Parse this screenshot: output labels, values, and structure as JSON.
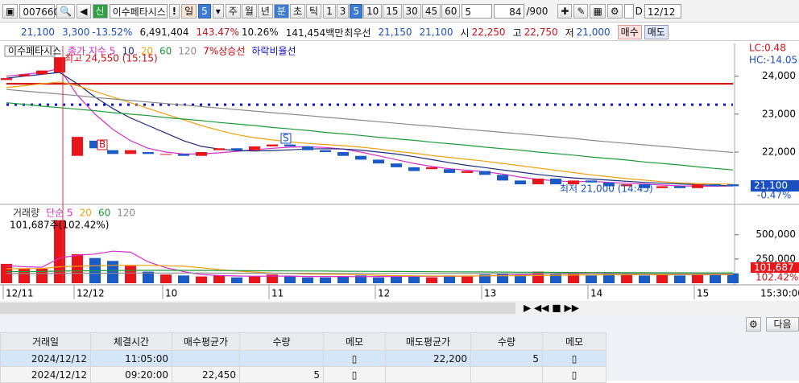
{
  "toolbar": {
    "code": "007660",
    "badge": "신",
    "name": "이수페타시스",
    "alert": "!",
    "period_label": "일",
    "period_value": "5",
    "periods": [
      "주",
      "월",
      "년",
      "분",
      "초",
      "틱"
    ],
    "intervals": [
      "1",
      "3",
      "5",
      "10",
      "15",
      "30",
      "45",
      "60"
    ],
    "count": "5",
    "shown": "84",
    "total": "/900",
    "d_label": "D",
    "date": "12/12"
  },
  "quote": {
    "price": "21,100",
    "change": "3,300",
    "rate": "-13.52%",
    "volume": "6,491,404",
    "volume_rate": "143.47%",
    "turnover": "10.26%",
    "amount": "141,454백만",
    "best_label": "최우선",
    "ask": "21,150",
    "bid": "21,100",
    "open_label": "시",
    "open": "22,250",
    "high_label": "고",
    "high": "22,750",
    "low_label": "저",
    "low": "21,000",
    "buy": "매수",
    "sell": "매도"
  },
  "chart_data": [
    {
      "type": "candlestick",
      "title": "이수페타시스",
      "up_color": "#e8161b",
      "down_color": "#1a5bc8",
      "open": [
        23900,
        24000,
        24050,
        24100,
        21900,
        22300,
        22050,
        21950,
        22000,
        21950,
        21950,
        21900,
        22050,
        22100,
        22050,
        22150,
        22200,
        22150,
        22050,
        22000,
        21900,
        21800,
        21700,
        21600,
        21550,
        21550,
        21450,
        21500,
        21400,
        21250,
        21150,
        21300,
        21150,
        21250,
        21200,
        21100,
        21150,
        21050,
        21100,
        21050,
        21150,
        21150
      ],
      "close": [
        23950,
        24050,
        24150,
        24500,
        22400,
        22100,
        21950,
        22050,
        21950,
        21950,
        21900,
        22000,
        22100,
        22050,
        22150,
        22200,
        22150,
        22050,
        22000,
        21900,
        21800,
        21700,
        21600,
        21500,
        21600,
        21450,
        21500,
        21400,
        21250,
        21150,
        21300,
        21150,
        21250,
        21200,
        21100,
        21150,
        21050,
        21100,
        21050,
        21150,
        21100,
        21100
      ],
      "ylim": [
        20600,
        24800
      ],
      "yticks": [
        {
          "value": 24000,
          "label": "24,000"
        },
        {
          "value": 23000,
          "label": "23,000"
        },
        {
          "value": 22000,
          "label": "22,000"
        }
      ],
      "series": [
        {
          "name": "종가 지수 5",
          "color": "#d62cc8",
          "values": [
            24000,
            24050,
            24100,
            24200,
            23500,
            23000,
            22600,
            22300,
            22100,
            22000,
            21950,
            21950,
            21980,
            22020,
            22060,
            22100,
            22130,
            22140,
            22120,
            22080,
            22000,
            21900,
            21800,
            21700,
            21620,
            21560,
            21520,
            21480,
            21420,
            21340,
            21280,
            21240,
            21220,
            21230,
            21200,
            21180,
            21160,
            21130,
            21110,
            21100,
            21100,
            21110
          ]
        },
        {
          "name": "10",
          "color": "#1c2a7a",
          "values": [
            23950,
            24000,
            24050,
            24100,
            23800,
            23450,
            23150,
            22900,
            22700,
            22500,
            22300,
            22150,
            22080,
            22040,
            22030,
            22040,
            22060,
            22080,
            22090,
            22080,
            22050,
            22000,
            21950,
            21880,
            21800,
            21720,
            21650,
            21590,
            21530,
            21470,
            21410,
            21360,
            21320,
            21290,
            21260,
            21230,
            21200,
            21180,
            21160,
            21140,
            21120,
            21110
          ]
        },
        {
          "name": "20",
          "color": "#f0a010",
          "values": [
            23700,
            23750,
            23800,
            23850,
            23750,
            23600,
            23450,
            23300,
            23150,
            23000,
            22850,
            22700,
            22570,
            22460,
            22380,
            22320,
            22270,
            22230,
            22200,
            22170,
            22130,
            22080,
            22020,
            21970,
            21910,
            21860,
            21810,
            21760,
            21700,
            21640,
            21580,
            21520,
            21460,
            21400,
            21350,
            21300,
            21260,
            21220,
            21190,
            21170,
            21160,
            21150
          ]
        },
        {
          "name": "60",
          "color": "#1f9a3a",
          "values": [
            23300,
            23260,
            23210,
            23170,
            23130,
            23090,
            23040,
            23000,
            22960,
            22910,
            22870,
            22830,
            22780,
            22740,
            22700,
            22650,
            22610,
            22570,
            22520,
            22480,
            22440,
            22390,
            22350,
            22310,
            22260,
            22220,
            22180,
            22130,
            22090,
            22050,
            22000,
            21960,
            21920,
            21870,
            21830,
            21790,
            21740,
            21700,
            21660,
            21610,
            21570,
            21530
          ]
        },
        {
          "name": "120",
          "color": "#8a8a8a",
          "values": [
            23650,
            23610,
            23570,
            23530,
            23490,
            23440,
            23400,
            23360,
            23320,
            23280,
            23240,
            23200,
            23160,
            23120,
            23080,
            23040,
            23000,
            22960,
            22920,
            22880,
            22840,
            22800,
            22760,
            22720,
            22680,
            22640,
            22600,
            22560,
            22520,
            22480,
            22440,
            22400,
            22360,
            22310,
            22270,
            22230,
            22190,
            22150,
            22110,
            22070,
            22030,
            21990
          ]
        }
      ],
      "lines": [
        {
          "name": "7%상승선",
          "color": "#d00000",
          "value": 23800
        },
        {
          "name": "하락비율선",
          "color": "#1010d0",
          "value": 23250
        }
      ],
      "annotations": {
        "high": "최고 24,550 (15:15)",
        "low": "최저 21,000 (14:45)",
        "lc": "LC:0.48",
        "hc": "HC:-14.05",
        "last_price": "21,100",
        "last_rate": "-0.47%",
        "buy_mark": "B",
        "sell_mark": "S"
      }
    },
    {
      "type": "bar",
      "title": "거래량",
      "subtitle": "101,687주(102.42%)",
      "up_color": "#e8161b",
      "down_color": "#1a5bc8",
      "categories": [
        "12/11",
        null,
        null,
        null,
        "12/12",
        null,
        null,
        null,
        null,
        "10",
        null,
        null,
        null,
        null,
        null,
        "11",
        null,
        null,
        null,
        null,
        null,
        "12",
        null,
        null,
        null,
        null,
        null,
        "13",
        null,
        null,
        null,
        null,
        null,
        "14",
        null,
        null,
        null,
        null,
        null,
        "15",
        null,
        null
      ],
      "x_end": "15:30:00",
      "values": [
        200000,
        150000,
        150000,
        650000,
        300000,
        260000,
        230000,
        180000,
        120000,
        90000,
        80000,
        70000,
        80000,
        60000,
        70000,
        90000,
        70000,
        60000,
        60000,
        70000,
        80000,
        60000,
        80000,
        70000,
        60000,
        80000,
        70000,
        90000,
        100000,
        90000,
        120000,
        100000,
        110000,
        80000,
        100000,
        90000,
        80000,
        90000,
        80000,
        100000,
        90000,
        101687
      ],
      "ylim": [
        0,
        780000
      ],
      "yticks": [
        {
          "value": 500000,
          "label": "500,000"
        },
        {
          "value": 250000,
          "label": "250,000"
        }
      ],
      "series": [
        {
          "name": "단순 5",
          "color": "#d62cc8",
          "values": [
            180000,
            170000,
            165000,
            260000,
            290000,
            300000,
            330000,
            320000,
            220000,
            160000,
            120000,
            90000,
            80000,
            75000,
            72000,
            74000,
            74000,
            70000,
            70000,
            70000,
            68000,
            70000,
            70000,
            72000,
            70000,
            74000,
            72000,
            76000,
            80000,
            86000,
            94000,
            100000,
            104000,
            100000,
            102000,
            96000,
            92000,
            90000,
            88000,
            88000,
            88000,
            90000
          ]
        },
        {
          "name": "20",
          "color": "#f0a010",
          "values": [
            150000,
            150000,
            152000,
            170000,
            175000,
            180000,
            185000,
            185000,
            185000,
            180000,
            175000,
            160000,
            140000,
            125000,
            115000,
            105000,
            100000,
            95000,
            92000,
            90000,
            88000,
            82000,
            78000,
            76000,
            75000,
            75000,
            75000,
            76000,
            77000,
            78000,
            80000,
            82000,
            84000,
            85000,
            86000,
            87000,
            88000,
            88000,
            89000,
            90000,
            90000,
            90000
          ]
        },
        {
          "name": "60",
          "color": "#1f9a3a",
          "values": [
            120000,
            120000,
            121000,
            125000,
            127000,
            129000,
            131000,
            132000,
            133000,
            133000,
            133000,
            132000,
            131000,
            130000,
            129000,
            128000,
            127000,
            126000,
            125000,
            124000,
            123000,
            122000,
            121000,
            120000,
            119000,
            118000,
            117000,
            116000,
            115000,
            114000,
            113000,
            112000,
            111000,
            110000,
            110000,
            109000,
            109000,
            108000,
            108000,
            107000,
            107000,
            107000
          ]
        },
        {
          "name": "120",
          "color": "#8a8a8a",
          "values": [
            100000,
            100000,
            100000,
            101000,
            102000,
            103000,
            104000,
            105000,
            105000,
            105000,
            105000,
            105000,
            104000,
            104000,
            104000,
            103000,
            103000,
            103000,
            102000,
            102000,
            102000,
            101000,
            101000,
            101000,
            100000,
            100000,
            100000,
            100000,
            99000,
            99000,
            99000,
            99000,
            98000,
            98000,
            98000,
            98000,
            98000,
            97000,
            97000,
            97000,
            97000,
            97000
          ]
        }
      ],
      "last_label": "101,687",
      "last_rate": "102.42%"
    }
  ],
  "table": {
    "headers": [
      "거래일",
      "체결시간",
      "매수평균가",
      "수량",
      "메모",
      "매도평균가",
      "수량",
      "메모"
    ],
    "rows": [
      [
        "2024/12/12",
        "11:05:00",
        null,
        null,
        null,
        "22,200",
        "5",
        null
      ],
      [
        "2024/12/12",
        "09:20:00",
        "22,450",
        "5",
        null,
        null,
        null,
        null
      ]
    ]
  },
  "next": "다음"
}
